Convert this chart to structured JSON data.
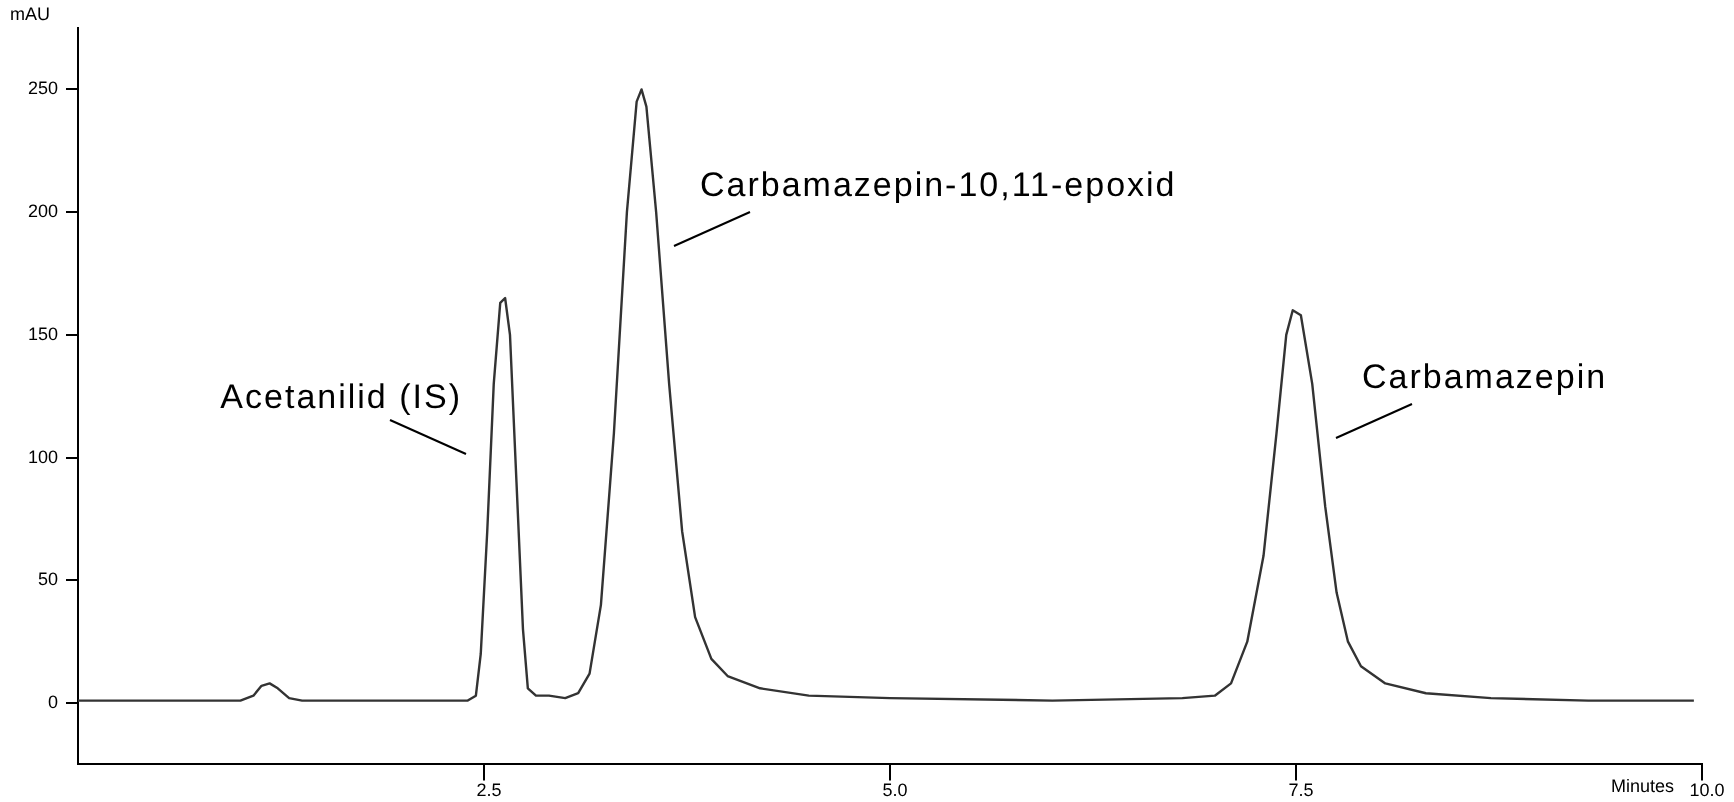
{
  "chart_data": {
    "type": "line",
    "xlabel": "Minutes",
    "ylabel": "mAU",
    "xlim": [
      0,
      10
    ],
    "ylim": [
      -25,
      275
    ],
    "xticks": [
      {
        "value": 2.5,
        "label": "2.5"
      },
      {
        "value": 5,
        "label": "5.0"
      },
      {
        "value": 7.5,
        "label": "7.5"
      },
      {
        "value": 10,
        "label": "10.0"
      }
    ],
    "yticks": [
      0,
      50,
      100,
      150,
      200,
      250
    ],
    "grid": false,
    "legend": false,
    "marker": "none",
    "line_style": "solid",
    "series": [
      {
        "color": "#333333",
        "x": [
          0,
          0.5,
          1.0,
          1.08,
          1.13,
          1.18,
          1.23,
          1.3,
          1.38,
          2.0,
          2.4,
          2.45,
          2.48,
          2.52,
          2.56,
          2.6,
          2.63,
          2.66,
          2.7,
          2.74,
          2.77,
          2.82,
          2.9,
          3.0,
          3.08,
          3.15,
          3.22,
          3.3,
          3.38,
          3.44,
          3.47,
          3.5,
          3.56,
          3.64,
          3.72,
          3.8,
          3.9,
          4.0,
          4.2,
          4.5,
          5.0,
          6.0,
          6.8,
          7.0,
          7.1,
          7.2,
          7.3,
          7.38,
          7.44,
          7.48,
          7.53,
          7.6,
          7.68,
          7.75,
          7.82,
          7.9,
          8.05,
          8.3,
          8.7,
          9.3,
          9.95
        ],
        "values": [
          1,
          1,
          1,
          3,
          7,
          8,
          6,
          2,
          1,
          1,
          1,
          3,
          20,
          70,
          130,
          163,
          165,
          150,
          90,
          30,
          6,
          3,
          3,
          2,
          4,
          12,
          40,
          110,
          200,
          245,
          250,
          243,
          200,
          130,
          70,
          35,
          18,
          11,
          6,
          3,
          2,
          1,
          2,
          3,
          8,
          25,
          60,
          110,
          150,
          160,
          158,
          130,
          80,
          45,
          25,
          15,
          8,
          4,
          2,
          1,
          1
        ]
      }
    ],
    "annotations": [
      "Acetanilid (IS)",
      "Carbamazepin-10,11-epoxid",
      "Carbamazepin"
    ]
  }
}
